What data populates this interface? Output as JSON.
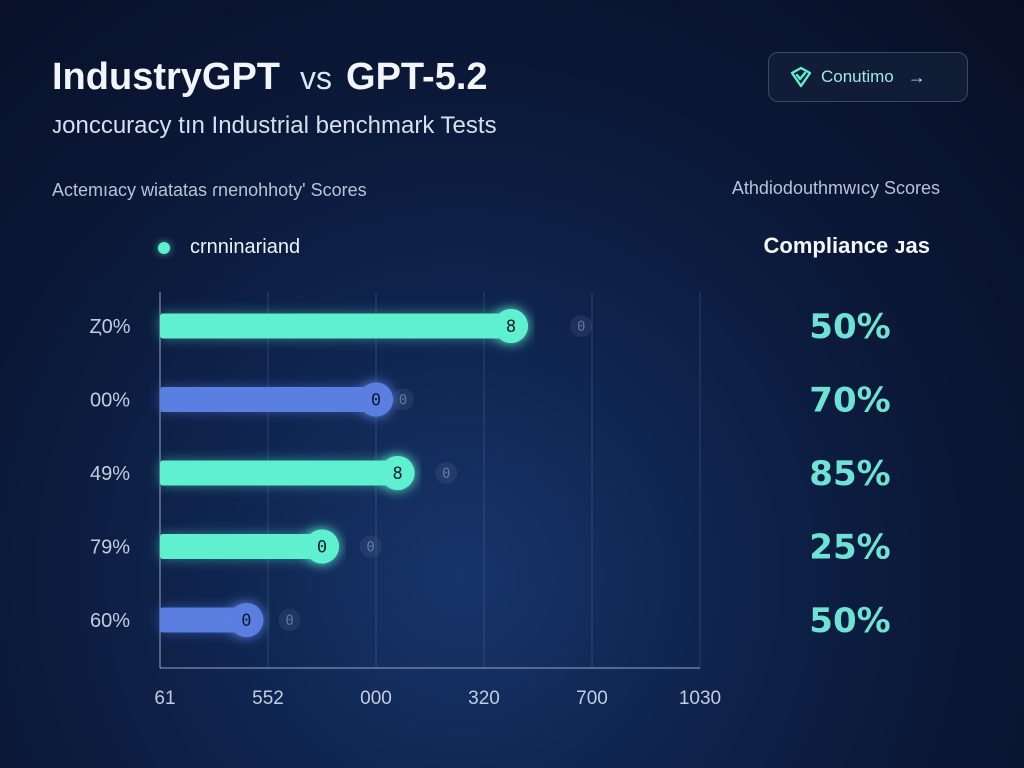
{
  "header": {
    "title_left": "IndustryGPT",
    "title_vs": "vs",
    "title_right": "GPT-5.2",
    "subtitle": "ᴊᴏnccuracy  tın Industrial benchmark Tests"
  },
  "continue_button": {
    "label": "Conutimo",
    "arrow": "→",
    "icon": "check-icon"
  },
  "sections": {
    "left_label": "Aᴄtemıacy wiatatas ɾnenohhoty' Scores",
    "right_label": "Athdiodouthmwıcy Scores"
  },
  "legend": {
    "label": "crnninariand"
  },
  "compliance": {
    "title": "Compliance ᴊas"
  },
  "colors": {
    "teal": "#5ef0cf",
    "blue": "#5b7fe0",
    "compliance_text": "#6fe3d3"
  },
  "chart_data": {
    "type": "bar",
    "orientation": "horizontal",
    "title": "Aᴄtemıacy wiatatas ɾnenohhoty' Scores",
    "categories": [
      "Ȥ0%",
      "00%",
      "49%",
      "79%",
      "60%"
    ],
    "values": [
      650,
      400,
      440,
      300,
      160
    ],
    "marker_labels": [
      "8",
      "0",
      "8",
      "0",
      "0"
    ],
    "ghost_values": [
      780,
      450,
      530,
      390,
      240
    ],
    "ghost_labels": [
      "0",
      "0",
      "0",
      "0",
      "0"
    ],
    "colors": [
      "#5ef0cf",
      "#5b7fe0",
      "#5ef0cf",
      "#5ef0cf",
      "#5b7fe0"
    ],
    "x_ticks": [
      {
        "value": 0,
        "label": "61"
      },
      {
        "value": 200,
        "label": "552"
      },
      {
        "value": 400,
        "label": "000"
      },
      {
        "value": 600,
        "label": "320"
      },
      {
        "value": 800,
        "label": "700"
      },
      {
        "value": 1000,
        "label": "1030"
      }
    ],
    "xlim": [
      0,
      1000
    ],
    "grid": true,
    "compliance_values": [
      "50%",
      "70%",
      "85%",
      "25%",
      "50%"
    ]
  }
}
